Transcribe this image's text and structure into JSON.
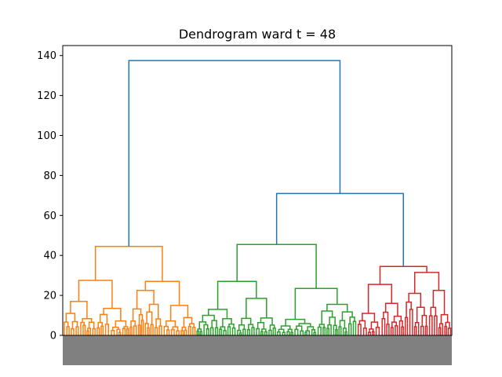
{
  "chart_data": {
    "type": "dendrogram",
    "title": "Dendrogram ward t = 48",
    "xlabel": "",
    "ylabel": "",
    "ylim": [
      0,
      145
    ],
    "yticks": [
      0,
      20,
      40,
      60,
      80,
      100,
      120,
      140
    ],
    "colors": {
      "orange": "#ff7f0e",
      "green": "#2ca02c",
      "red": "#d62728",
      "blue": "#1f77b4"
    },
    "top_links": [
      {
        "name": "root",
        "height": 137.5,
        "left_height": 44.5,
        "right_height": 71,
        "color": "blue"
      },
      {
        "name": "right-merge",
        "height": 71,
        "left_height": 45.5,
        "right_height": 34.5,
        "color": "blue"
      }
    ],
    "clusters": [
      {
        "name": "orange",
        "color": "orange",
        "height": 44.5,
        "left": {
          "height": 27.5,
          "left": 17,
          "right": 13.5
        },
        "right": {
          "height": 27,
          "left": 22.5,
          "right": 15
        }
      },
      {
        "name": "green",
        "color": "green",
        "height": 45.5,
        "left": {
          "height": 27,
          "left": 13,
          "right": 18.5
        },
        "right": {
          "height": 23.5,
          "left": 8,
          "right": 15.5
        }
      },
      {
        "name": "red",
        "color": "red",
        "height": 34.5,
        "left": {
          "height": 25.5,
          "left": 11,
          "right": 16
        },
        "right": {
          "height": 31.5,
          "left": 21,
          "right": 22.5
        }
      }
    ]
  }
}
